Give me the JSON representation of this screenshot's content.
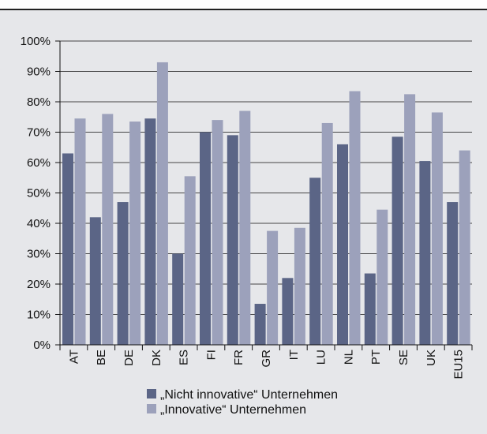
{
  "chart_data": {
    "type": "bar",
    "categories": [
      "AT",
      "BE",
      "DE",
      "DK",
      "ES",
      "FI",
      "FR",
      "GR",
      "IT",
      "LU",
      "NL",
      "PT",
      "SE",
      "UK",
      "EU15"
    ],
    "series": [
      {
        "name": "„Nicht innovative“ Unternehmen",
        "color": "#5b6586",
        "values": [
          63,
          42,
          47,
          74.5,
          30,
          70,
          69,
          13.5,
          22,
          55,
          66,
          23.5,
          68.5,
          60.5,
          47
        ]
      },
      {
        "name": "„Innovative“ Unternehmen",
        "color": "#9ca1bb",
        "values": [
          74.5,
          76,
          73.5,
          93,
          55.5,
          74,
          77,
          37.5,
          38.5,
          73,
          83.5,
          44.5,
          82.5,
          76.5,
          64
        ]
      }
    ],
    "ylim": [
      0,
      100
    ],
    "yticks": [
      {
        "value": 0,
        "label": "0%"
      },
      {
        "value": 10,
        "label": "10%"
      },
      {
        "value": 20,
        "label": "20%"
      },
      {
        "value": 30,
        "label": "30%"
      },
      {
        "value": 40,
        "label": "40%"
      },
      {
        "value": 50,
        "label": "50%"
      },
      {
        "value": 60,
        "label": "60%"
      },
      {
        "value": 70,
        "label": "70%"
      },
      {
        "value": 80,
        "label": "80%"
      },
      {
        "value": 90,
        "label": "90%"
      },
      {
        "value": 100,
        "label": "100%"
      }
    ],
    "grid": true
  }
}
